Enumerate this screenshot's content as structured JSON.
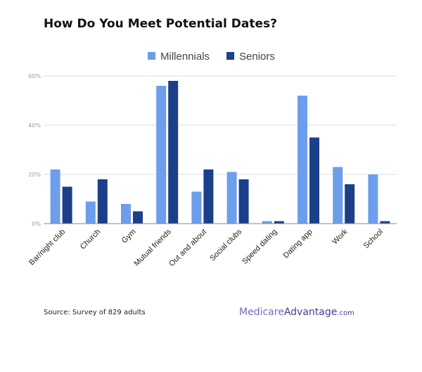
{
  "title": "How Do You Meet Potential Dates?",
  "colors": {
    "millennials": "#6d9eeb",
    "seniors": "#1c3f8a",
    "grid": "#dddddd",
    "axis": "#888888",
    "tick_text": "#999999",
    "label_text": "#222222"
  },
  "chart_data": {
    "type": "bar",
    "categories": [
      "Bar/night club",
      "Church",
      "Gym",
      "Mutual friends",
      "Out and about",
      "Social clubs",
      "Speed dating",
      "Dating app",
      "Work",
      "School"
    ],
    "series": [
      {
        "name": "Millennials",
        "values": [
          22,
          9,
          8,
          56,
          13,
          21,
          1,
          52,
          23,
          20
        ]
      },
      {
        "name": "Seniors",
        "values": [
          15,
          18,
          5,
          58,
          22,
          18,
          1,
          35,
          16,
          1
        ]
      }
    ],
    "ylim": [
      0,
      60
    ],
    "yticks": [
      "0%",
      "20%",
      "40%",
      "60%"
    ],
    "ytick_values": [
      0,
      20,
      40,
      60
    ],
    "grid": true,
    "legend_position": "top-center"
  },
  "footer": {
    "source": "Source: Survey of 829 adults",
    "brand_part1": "Medicare",
    "brand_part2": "Advantage",
    "brand_part3": ".com"
  }
}
